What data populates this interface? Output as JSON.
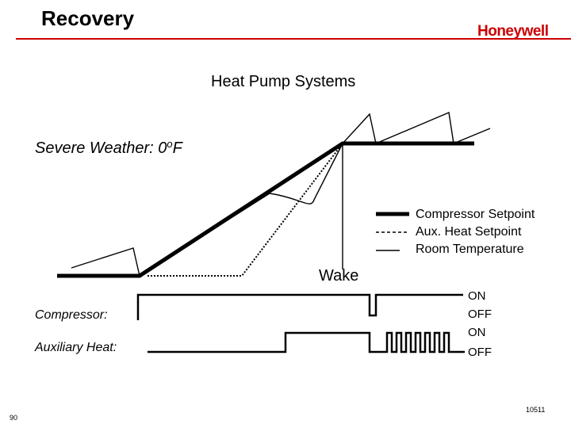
{
  "header": {
    "title": "Recovery",
    "logo_text": "Honeywell",
    "accent_color": "#cc0000"
  },
  "diagram": {
    "subtitle": "Heat Pump Systems",
    "condition": "Severe Weather: 0oF",
    "legend": {
      "compressor": "Compressor Setpoint",
      "aux": "Aux. Heat Setpoint",
      "room": "Room Temperature"
    },
    "wake_label": "Wake",
    "rows": {
      "compressor": "Compressor:",
      "auxiliary": "Auxiliary Heat:"
    },
    "states": [
      "ON",
      "OFF",
      "ON",
      "OFF"
    ]
  },
  "footer": {
    "page_number": "90",
    "doc_number": "10511"
  }
}
